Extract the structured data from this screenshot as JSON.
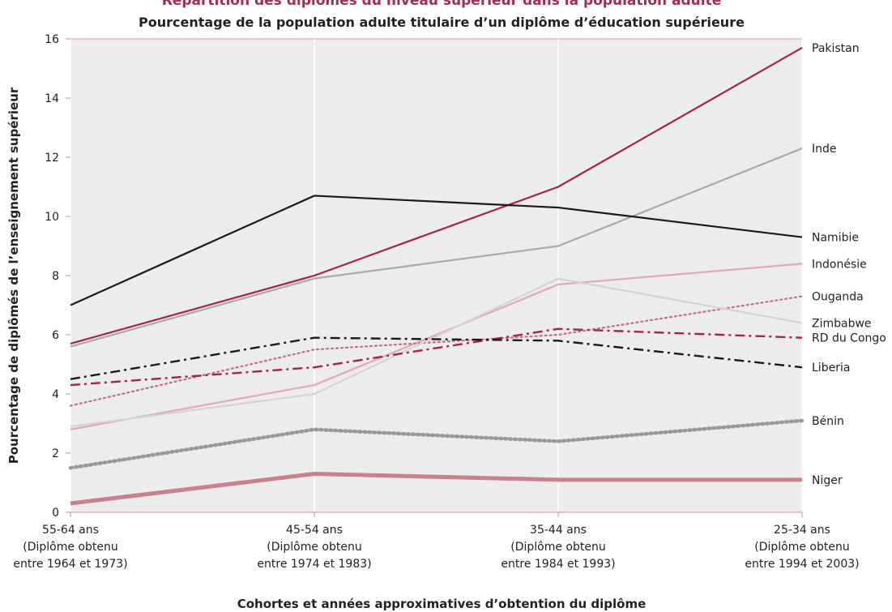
{
  "chart_data": {
    "type": "line",
    "title": "Répartition des diplômés du niveau supérieur dans la population adulte",
    "subtitle": "Pourcentage de la population adulte titulaire d’un diplôme d’éducation supérieure",
    "ylabel": "Pourcentage de diplômés de l’enseignement supérieur",
    "xlabel": "Cohortes et années approximatives d’obtention du diplôme",
    "ylim": [
      0,
      16
    ],
    "yticks": [
      "0",
      "2",
      "4",
      "6",
      "8",
      "10",
      "12",
      "14",
      "16"
    ],
    "grid": "vertical",
    "legend": "labels at right end of lines",
    "categories": [
      {
        "line1": "55-64 ans",
        "line2": "(Diplôme obtenu",
        "line3": "entre 1964 et 1973)"
      },
      {
        "line1": "45-54 ans",
        "line2": "(Diplôme obtenu",
        "line3": "entre 1974 et 1983)"
      },
      {
        "line1": "35-44 ans",
        "line2": "(Diplôme obtenu",
        "line3": "entre 1984 et 1993)"
      },
      {
        "line1": "25-34 ans",
        "line2": "(Diplôme obtenu",
        "line3": "entre 1994 et 2003)"
      }
    ],
    "series": [
      {
        "name": "Pakistan",
        "values": [
          5.7,
          8.0,
          11.0,
          15.7
        ],
        "color": "#a3234f",
        "style": "solid",
        "width": 2.2
      },
      {
        "name": "Inde",
        "values": [
          5.6,
          7.9,
          9.0,
          12.3
        ],
        "color": "#aaaaaa",
        "style": "solid",
        "width": 2.2
      },
      {
        "name": "Namibie",
        "values": [
          7.0,
          10.7,
          10.3,
          9.3
        ],
        "color": "#1a1a1a",
        "style": "solid",
        "width": 2.2
      },
      {
        "name": "Indonésie",
        "values": [
          2.8,
          4.3,
          7.7,
          8.4
        ],
        "color": "#e0aab4",
        "style": "solid",
        "width": 2.2
      },
      {
        "name": "Ouganda",
        "values": [
          3.6,
          5.5,
          6.0,
          7.3
        ],
        "color": "#c06e85",
        "style": "dotted",
        "width": 2.2
      },
      {
        "name": "Zimbabwe",
        "values": [
          2.9,
          4.0,
          7.9,
          6.4
        ],
        "color": "#d3d3d3",
        "style": "solid",
        "width": 2.2
      },
      {
        "name": "RD du Congo",
        "values": [
          4.3,
          4.9,
          6.2,
          5.9
        ],
        "color": "#a3234f",
        "style": "dashdot",
        "width": 2.4
      },
      {
        "name": "Liberia",
        "values": [
          4.5,
          5.9,
          5.8,
          4.9
        ],
        "color": "#1a1a1a",
        "style": "dashdot",
        "width": 2.4
      },
      {
        "name": "Bénin",
        "values": [
          1.5,
          2.8,
          2.4,
          3.1
        ],
        "color": "#999999",
        "style": "dotted",
        "width": 4.5
      },
      {
        "name": "Niger",
        "values": [
          0.3,
          1.3,
          1.1,
          1.1
        ],
        "color": "#c9808f",
        "style": "solid",
        "width": 5
      }
    ]
  }
}
